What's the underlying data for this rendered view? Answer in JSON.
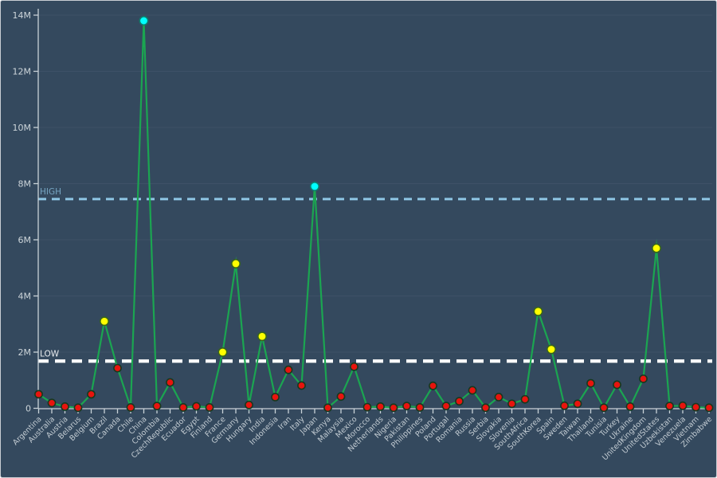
{
  "window": {
    "background_color": "#34495e",
    "border_color": "#c9ced4"
  },
  "chart_data": {
    "type": "line",
    "title": "",
    "xlabel": "",
    "ylabel": "",
    "grid": true,
    "legend_position": "none",
    "ylim": [
      0,
      14
    ],
    "ytick_values": [
      0,
      2,
      4,
      6,
      8,
      10,
      12,
      14
    ],
    "ytick_labels": [
      "0",
      "2M",
      "4M",
      "6M",
      "8M",
      "10M",
      "12M",
      "14M"
    ],
    "categories": [
      "Argentina",
      "Australia",
      "Austria",
      "Belarus",
      "Belgium",
      "Brazil",
      "Canada",
      "Chile",
      "China",
      "Colombia",
      "CzechRepublic",
      "Ecuador",
      "Egypt",
      "Finland",
      "France",
      "Germany",
      "Hungary",
      "India",
      "Indonesia",
      "Iran",
      "Italy",
      "Japan",
      "Kenya",
      "Malaysia",
      "Mexico",
      "Morocco",
      "Netherlands",
      "Nigeria",
      "Pakistan",
      "Philippines",
      "Poland",
      "Portugal",
      "Romania",
      "Russia",
      "Serbia",
      "Slovakia",
      "Slovenia",
      "SouthAfrica",
      "SouthKorea",
      "Spain",
      "Sweden",
      "Taiwan",
      "Thailand",
      "Tunisia",
      "Turkey",
      "Ukraine",
      "UnitedKingdom",
      "UnitedStates",
      "Uzbekistan",
      "Venezuela",
      "Vietnam",
      "Zimbabwe"
    ],
    "values_millions": [
      0.5,
      0.19,
      0.06,
      0.02,
      0.5,
      3.1,
      1.43,
      0.03,
      13.8,
      0.08,
      0.92,
      0.03,
      0.07,
      0.03,
      2.0,
      5.15,
      0.12,
      2.56,
      0.4,
      1.37,
      0.81,
      7.9,
      0.02,
      0.42,
      1.48,
      0.04,
      0.06,
      0.02,
      0.08,
      0.03,
      0.8,
      0.08,
      0.25,
      0.64,
      0.02,
      0.4,
      0.16,
      0.32,
      3.45,
      2.1,
      0.09,
      0.16,
      0.89,
      0.02,
      0.84,
      0.06,
      1.05,
      5.7,
      0.08,
      0.09,
      0.04,
      0.02
    ],
    "series_color": "#1ba551",
    "thresholds": {
      "high": {
        "label": "HIGH",
        "value_millions": 7.45,
        "line_color": "#8ec6e4",
        "label_color": "#76a5c2",
        "dash": "10 7",
        "width": 3
      },
      "low": {
        "label": "LOW",
        "value_millions": 1.68,
        "line_color": "#ffffff",
        "label_color": "#e8ecef",
        "dash": "13 8",
        "width": 4.2
      }
    },
    "marker_styles": {
      "below_low": {
        "fill": "#e8140e",
        "edge": "#16391f",
        "radius": 4.6
      },
      "mid": {
        "fill": "#ffff00",
        "edge": "#37641d",
        "radius": 5.2
      },
      "above_high": {
        "fill": "#00ffff",
        "edge": "#0e7d6d",
        "radius": 5.2
      }
    },
    "axis_color": "#c9d2d8",
    "grid_color": "#3e5167",
    "ytick_label_color": "#cdd5da",
    "xtick_label_color": "#c2cbd2"
  }
}
